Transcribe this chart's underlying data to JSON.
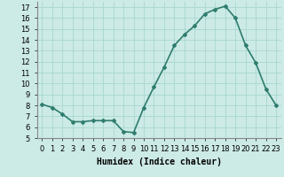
{
  "x": [
    0,
    1,
    2,
    3,
    4,
    5,
    6,
    7,
    8,
    9,
    10,
    11,
    12,
    13,
    14,
    15,
    16,
    17,
    18,
    19,
    20,
    21,
    22,
    23
  ],
  "y": [
    8.1,
    7.8,
    7.2,
    6.5,
    6.5,
    6.6,
    6.6,
    6.6,
    5.6,
    5.5,
    7.8,
    9.7,
    11.5,
    13.5,
    14.5,
    15.3,
    16.4,
    16.8,
    17.1,
    16.0,
    13.5,
    11.9,
    9.5,
    8.0
  ],
  "line_color": "#2e7d6e",
  "marker": "D",
  "marker_size": 2,
  "line_width": 1.2,
  "xlabel": "Humidex (Indice chaleur)",
  "xlabel_fontsize": 7,
  "ylim": [
    5,
    17.5
  ],
  "xlim": [
    -0.5,
    23.5
  ],
  "yticks": [
    5,
    6,
    7,
    8,
    9,
    10,
    11,
    12,
    13,
    14,
    15,
    16,
    17
  ],
  "xticks": [
    0,
    1,
    2,
    3,
    4,
    5,
    6,
    7,
    8,
    9,
    10,
    11,
    12,
    13,
    14,
    15,
    16,
    17,
    18,
    19,
    20,
    21,
    22,
    23
  ],
  "xtick_labels": [
    "0",
    "1",
    "2",
    "3",
    "4",
    "5",
    "6",
    "7",
    "8",
    "9",
    "10",
    "11",
    "12",
    "13",
    "14",
    "15",
    "16",
    "17",
    "18",
    "19",
    "20",
    "21",
    "22",
    "23"
  ],
  "grid_color": "#a8d8d0",
  "background_color": "#cceae6",
  "tick_fontsize": 6
}
